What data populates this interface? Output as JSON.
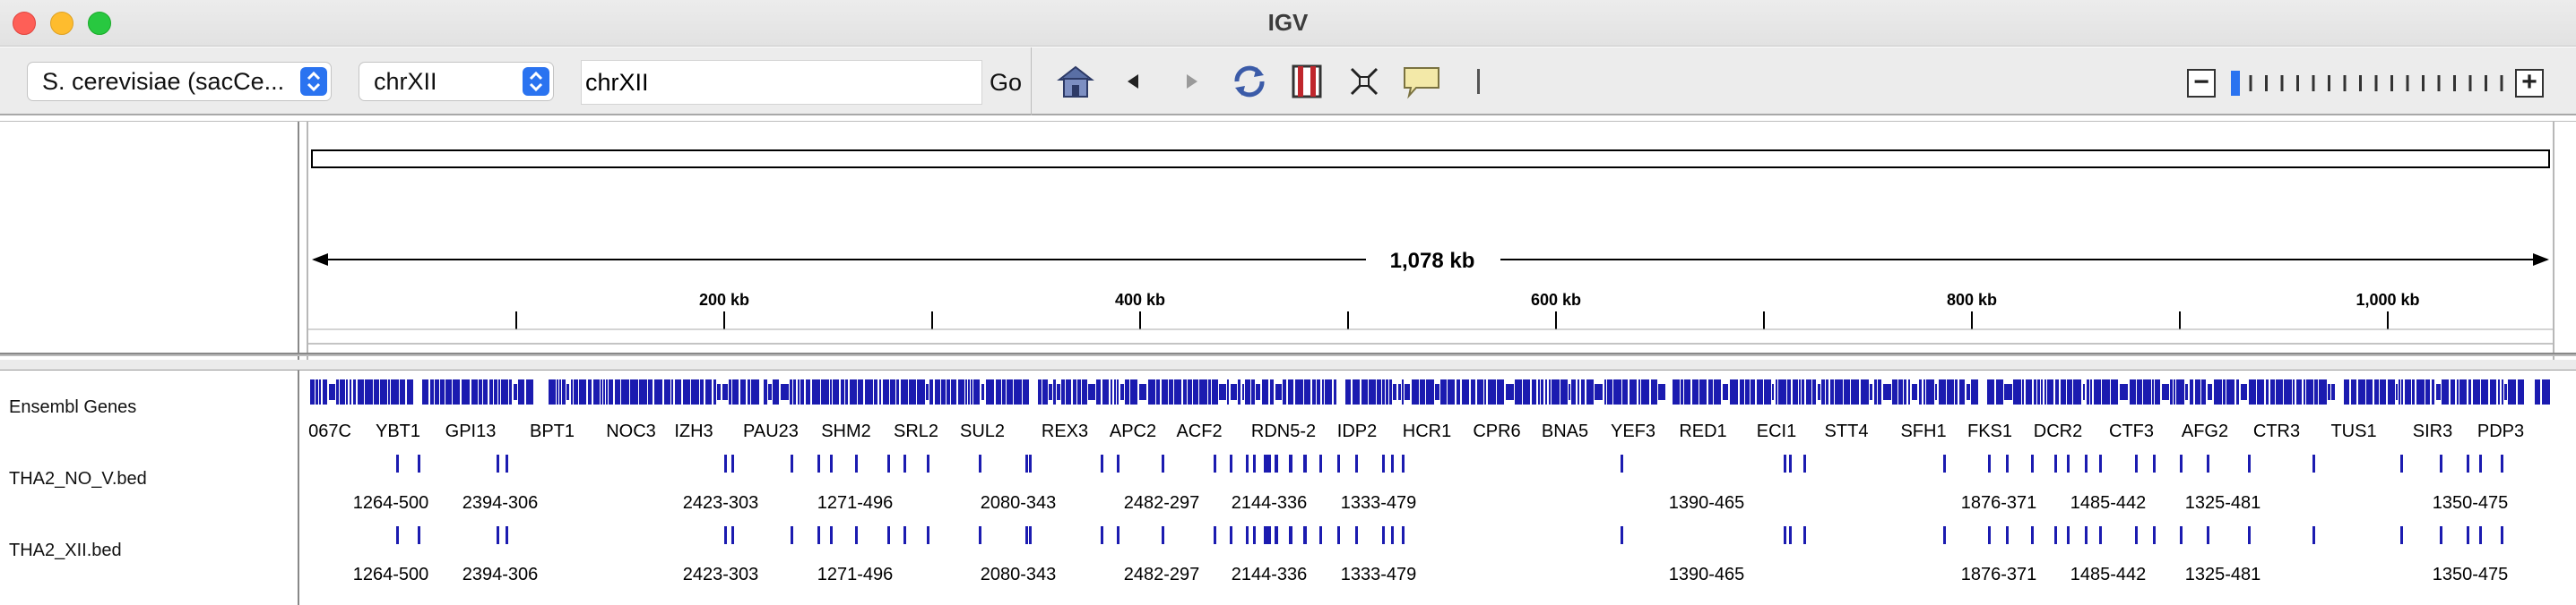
{
  "window": {
    "title": "IGV"
  },
  "toolbar": {
    "genome": "S. cerevisiae (sacCe...",
    "chromosome": "chrXII",
    "locus": "chrXII",
    "go_label": "Go",
    "icons": [
      "home-icon",
      "back-icon",
      "forward-icon",
      "refresh-icon",
      "region-icon",
      "resize-icon",
      "popup-info-icon",
      "ruler-toggle-icon"
    ],
    "zoom_levels": 18,
    "zoom_current": 0
  },
  "ruler": {
    "span_label": "1,078 kb",
    "tick_labels": [
      "200 kb",
      "400 kb",
      "600 kb",
      "800 kb",
      "1,000 kb"
    ]
  },
  "tracks": [
    {
      "name": "Ensembl Genes"
    },
    {
      "name": "THA2_NO_V.bed"
    },
    {
      "name": "THA2_XII.bed"
    }
  ],
  "gene_labels": [
    "067C",
    "YBT1",
    "GPI13",
    "BPT1",
    "NOC3",
    "IZH3",
    "PAU23",
    "SHM2",
    "SRL2",
    "SUL2",
    "REX3",
    "APC2",
    "ACF2",
    "RDN5-2",
    "IDP2",
    "HCR1",
    "CPR6",
    "BNA5",
    "YEF3",
    "RED1",
    "ECI1",
    "STT4",
    "SFH1",
    "FKS1",
    "DCR2",
    "CTF3",
    "AFG2",
    "CTR3",
    "TUS1",
    "SIR3",
    "PDP3"
  ],
  "bed_labels": [
    "1264-500",
    "2394-306",
    "2423-303",
    "1271-496",
    "2080-343",
    "2482-297",
    "2144-336",
    "1333-479",
    "1390-465",
    "1876-371",
    "1485-442",
    "1325-481",
    "1350-475"
  ],
  "colors": {
    "feature": "#1b1bb0",
    "feature_dark": "#0a0a8c",
    "accent": "#2a73f0"
  }
}
